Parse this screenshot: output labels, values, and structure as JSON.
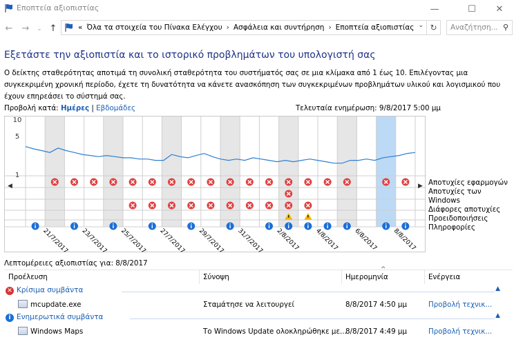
{
  "window": {
    "title": "Εποπτεία αξιοπιστίας"
  },
  "address": {
    "prefix": "«",
    "segments": [
      "Όλα τα στοιχεία του Πίνακα Ελέγχου",
      "Ασφάλεια και συντήρηση",
      "Εποπτεία αξιοπιστίας"
    ],
    "separator": "›"
  },
  "search": {
    "placeholder": "Αναζήτηση..."
  },
  "heading": "Εξετάστε την αξιοπιστία και το ιστορικό προβλημάτων του υπολογιστή σας",
  "description": "Ο δείκτης σταθερότητας αποτιμά τη συνολική σταθερότητα του συστήματός σας σε μια κλίμακα από 1 έως 10. Επιλέγοντας μια συγκεκριμένη χρονική περίοδο, έχετε τη δυνατότητα να κάνετε ανασκόπηση των συγκεκριμένων προβλημάτων υλικού και λογισμικού που έχουν επηρεάσει το σύστημά σας.",
  "view_by": {
    "label": "Προβολή κατά:",
    "days": "Ημέρες",
    "divider": "|",
    "weeks": "Εβδομάδες"
  },
  "last_updated": "Τελευταία ενημέρωση: 9/8/2017 5:00 μμ",
  "chart_data": {
    "type": "line",
    "title": "",
    "ylabel": "",
    "yticks": [
      10,
      5,
      1
    ],
    "ylim": [
      1,
      10
    ],
    "x_labels": [
      "21/7/2017",
      "23/7/2017",
      "25/7/2017",
      "27/7/2017",
      "29/7/2017",
      "31/7/2017",
      "2/8/2017",
      "4/8/2017",
      "6/8/2017",
      "8/8/2017"
    ],
    "selected_day_index": 18,
    "num_days": 20,
    "series": [
      {
        "values": [
          3.2,
          2.9,
          2.7,
          2.5,
          3.0,
          2.7,
          2.5,
          2.3,
          2.2,
          2.1,
          2.2,
          2.1,
          2.0,
          2.0,
          1.9,
          1.9,
          1.8,
          1.8,
          2.3,
          2.1,
          2.0,
          2.2,
          2.4,
          2.1,
          1.9,
          1.8,
          1.9,
          1.8,
          2.0,
          1.9,
          1.8,
          1.7,
          1.8,
          1.7,
          1.8,
          1.9,
          1.8,
          1.7,
          1.6,
          1.6,
          1.8,
          1.8,
          1.9,
          1.8,
          2.0,
          2.1,
          2.2,
          2.4,
          2.5
        ]
      }
    ],
    "rows": [
      "Αποτυχίες εφαρμογών",
      "Αποτυχίες των Windows",
      "Διάφορες αποτυχίες",
      "Προειδοποιήσεις",
      "Πληροφορίες"
    ],
    "events": {
      "app_failures": [
        1,
        2,
        3,
        4,
        5,
        6,
        7,
        8,
        9,
        10,
        11,
        12,
        13,
        14,
        15,
        16,
        18,
        19
      ],
      "windows_failures": [
        13
      ],
      "misc_failures": [
        5,
        6,
        7,
        8,
        9,
        10,
        11,
        12,
        13,
        14
      ],
      "warnings": [
        13,
        14
      ],
      "info": [
        0,
        2,
        4,
        6,
        8,
        10,
        12,
        13,
        14,
        15,
        16,
        18,
        19
      ]
    },
    "colors": {
      "line": "#2a7fd4",
      "failure": "#e04040",
      "warning": "#f2b600",
      "info": "#1c6ed6",
      "selected": "#bcd9f5",
      "weekend": "#e6e6e6"
    }
  },
  "details": {
    "title": "Λεπτομέρειες αξιοπιστίας για: 8/8/2017",
    "columns": [
      "Προέλευση",
      "Σύνοψη",
      "Ημερομηνία",
      "Ενέργεια"
    ],
    "groups": [
      {
        "label": "Κρίσιμα συμβάντα",
        "icon": "critical-icon",
        "rows": [
          {
            "source": "mcupdate.exe",
            "summary": "Σταμάτησε να λειτουργεί",
            "date": "8/8/2017 4:50 μμ",
            "action": "Προβολή τεχνικ..."
          }
        ]
      },
      {
        "label": "Ενημερωτικά συμβάντα",
        "icon": "info-icon",
        "rows": [
          {
            "source": "Windows Maps",
            "summary": "Το Windows Update ολοκληρώθηκε με...",
            "date": "8/8/2017 4:49 μμ",
            "action": "Προβολή τεχνικ..."
          }
        ]
      }
    ]
  }
}
